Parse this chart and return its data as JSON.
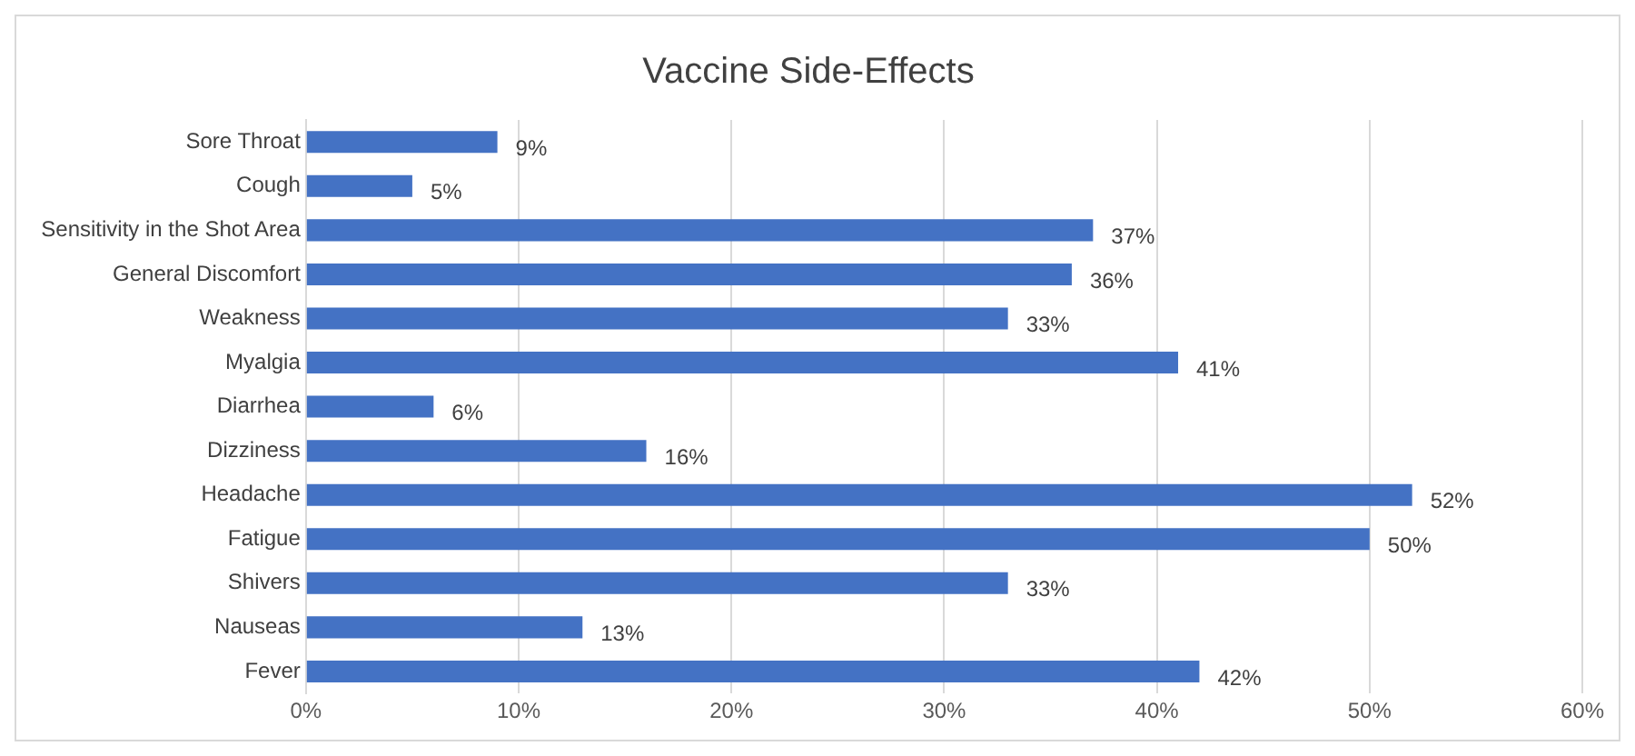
{
  "chart_data": {
    "type": "bar",
    "orientation": "horizontal",
    "title": "Vaccine Side-Effects",
    "categories": [
      "Sore Throat",
      "Cough",
      "Sensitivity in the Shot Area",
      "General Discomfort",
      "Weakness",
      "Myalgia",
      "Diarrhea",
      "Dizziness",
      "Headache",
      "Fatigue",
      "Shivers",
      "Nauseas",
      "Fever"
    ],
    "values": [
      9,
      5,
      37,
      36,
      33,
      41,
      6,
      16,
      52,
      50,
      33,
      13,
      42
    ],
    "value_labels": [
      "9%",
      "5%",
      "37%",
      "36%",
      "33%",
      "41%",
      "6%",
      "16%",
      "52%",
      "50%",
      "33%",
      "13%",
      "42%"
    ],
    "color": "#4472c4",
    "xlim": [
      0,
      60
    ],
    "xticks": [
      {
        "value": 0,
        "label": "0%"
      },
      {
        "value": 10,
        "label": "10%"
      },
      {
        "value": 20,
        "label": "20%"
      },
      {
        "value": 30,
        "label": "30%"
      },
      {
        "value": 40,
        "label": "40%"
      },
      {
        "value": 50,
        "label": "50%"
      },
      {
        "value": 60,
        "label": "60%"
      }
    ],
    "grid": "x",
    "legend": false
  }
}
